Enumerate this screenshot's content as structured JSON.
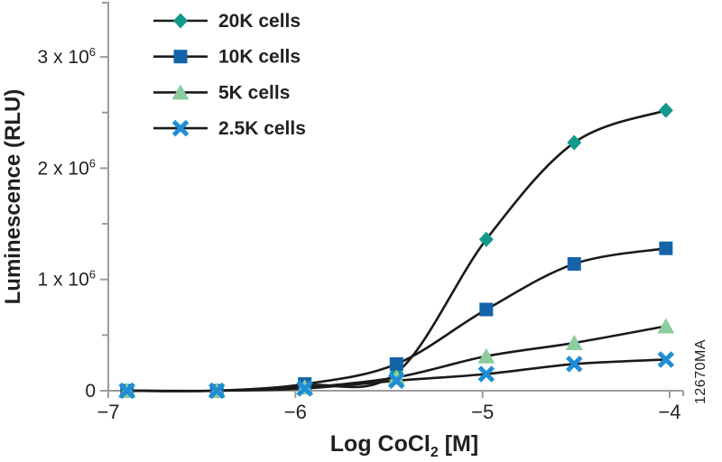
{
  "figure": {
    "watermark": "12670MA",
    "colors": {
      "background": "#ffffff",
      "axis": "#9c9c9c",
      "curve": "#1a1a1a",
      "text": "#231f20",
      "watermark": "#b5b5b5"
    }
  },
  "chart_data": {
    "type": "line",
    "title": "",
    "xlabel": "Log CoCl2 [M]",
    "xlabel_parts": {
      "main": "Log CoCl",
      "sub": "2",
      "unit": " [M]"
    },
    "ylabel": "Luminescence (RLU)",
    "xlim": [
      -7,
      -3.9
    ],
    "ylim": [
      0,
      3500000
    ],
    "grid": false,
    "legend_position": "top-left-inside",
    "x_ticks": [
      {
        "value": -7,
        "label": "−7"
      },
      {
        "value": -6,
        "label": "−6"
      },
      {
        "value": -5,
        "label": "−5"
      },
      {
        "value": -4,
        "label": "−4"
      }
    ],
    "y_ticks": [
      {
        "value": 0,
        "base": "0",
        "exp": ""
      },
      {
        "value": 1000000,
        "base": "1 x 10",
        "exp": "6"
      },
      {
        "value": 2000000,
        "base": "2 x 10",
        "exp": "6"
      },
      {
        "value": 3000000,
        "base": "3 x 10",
        "exp": "6"
      }
    ],
    "y_minor_ticks": [
      500000,
      1500000,
      2500000,
      3500000
    ],
    "x": [
      -6.9,
      -6.42,
      -5.95,
      -5.46,
      -4.98,
      -4.51,
      -4.02
    ],
    "series": [
      {
        "name": "20K cells",
        "marker": "diamond",
        "color": "#13998c",
        "values": [
          0,
          0,
          50000,
          160000,
          1360000,
          2230000,
          2520000
        ]
      },
      {
        "name": "10K cells",
        "marker": "square",
        "color": "#1463a8",
        "values": [
          0,
          0,
          60000,
          240000,
          730000,
          1140000,
          1280000
        ]
      },
      {
        "name": "5K cells",
        "marker": "triangle",
        "color": "#8ccc9f",
        "values": [
          0,
          0,
          30000,
          120000,
          310000,
          430000,
          580000
        ]
      },
      {
        "name": "2.5K cells",
        "marker": "x",
        "color": "#1f8ed6",
        "values": [
          0,
          0,
          20000,
          90000,
          150000,
          240000,
          280000
        ]
      }
    ]
  }
}
